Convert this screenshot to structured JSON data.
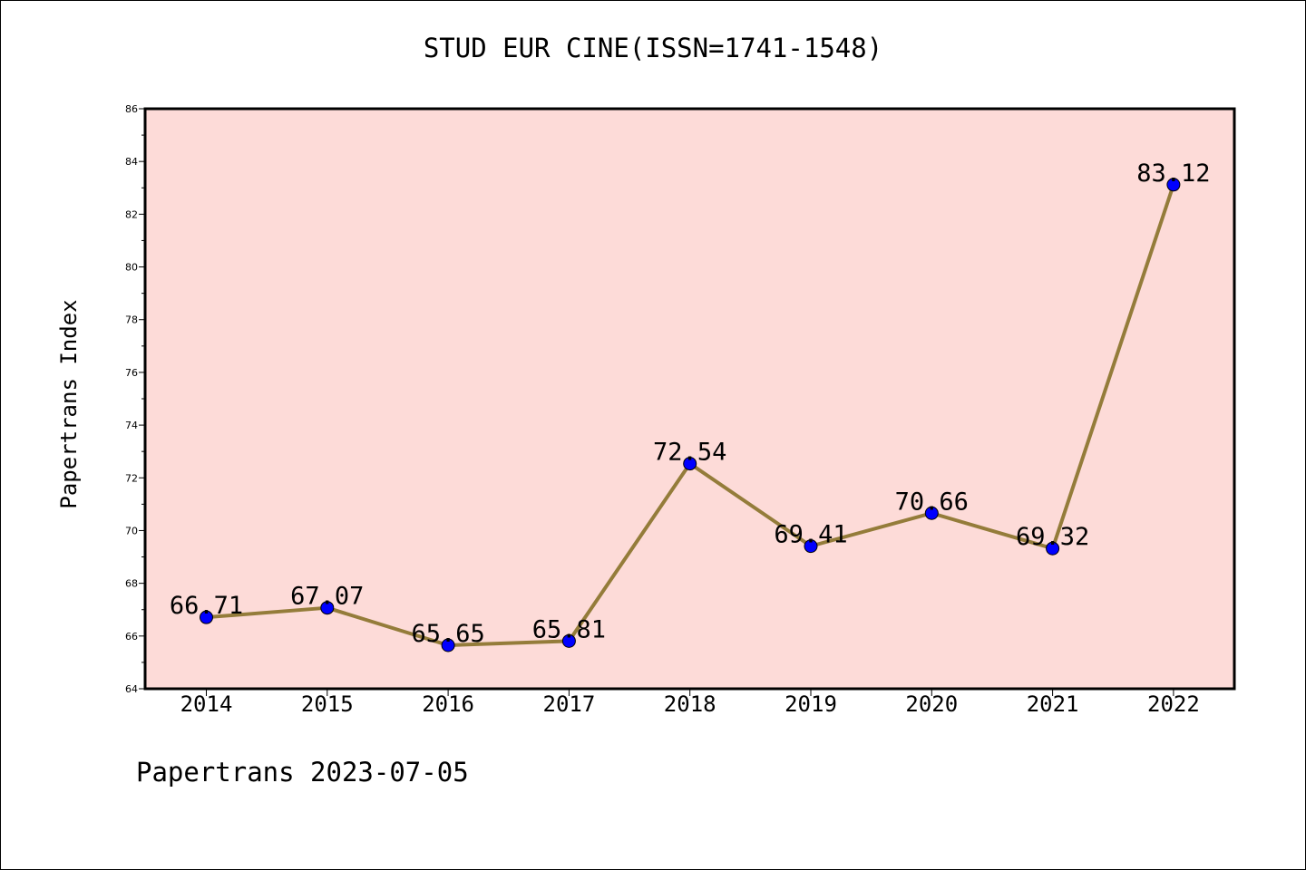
{
  "chart_data": {
    "type": "line",
    "title": "STUD EUR CINE(ISSN=1741-1548)",
    "ylabel": "Papertrans Index",
    "xlabel": "",
    "categories": [
      "2014",
      "2015",
      "2016",
      "2017",
      "2018",
      "2019",
      "2020",
      "2021",
      "2022"
    ],
    "series": [
      {
        "values": [
          66.71,
          67.07,
          65.65,
          65.81,
          72.54,
          69.41,
          70.66,
          69.32,
          83.12
        ],
        "labels": [
          "66.71",
          "67.07",
          "65.65",
          "65.81",
          "72.54",
          "69.41",
          "70.66",
          "69.32",
          "83.12"
        ]
      }
    ],
    "ylim": [
      64,
      86
    ],
    "yticks": [
      64,
      66,
      68,
      70,
      72,
      74,
      76,
      78,
      80,
      82,
      84,
      86
    ],
    "grid": false,
    "colors": {
      "plot_background": "#fddbd8",
      "line": "#947c3a",
      "marker": "#0000ff"
    }
  },
  "footer": "Papertrans 2023-07-05"
}
